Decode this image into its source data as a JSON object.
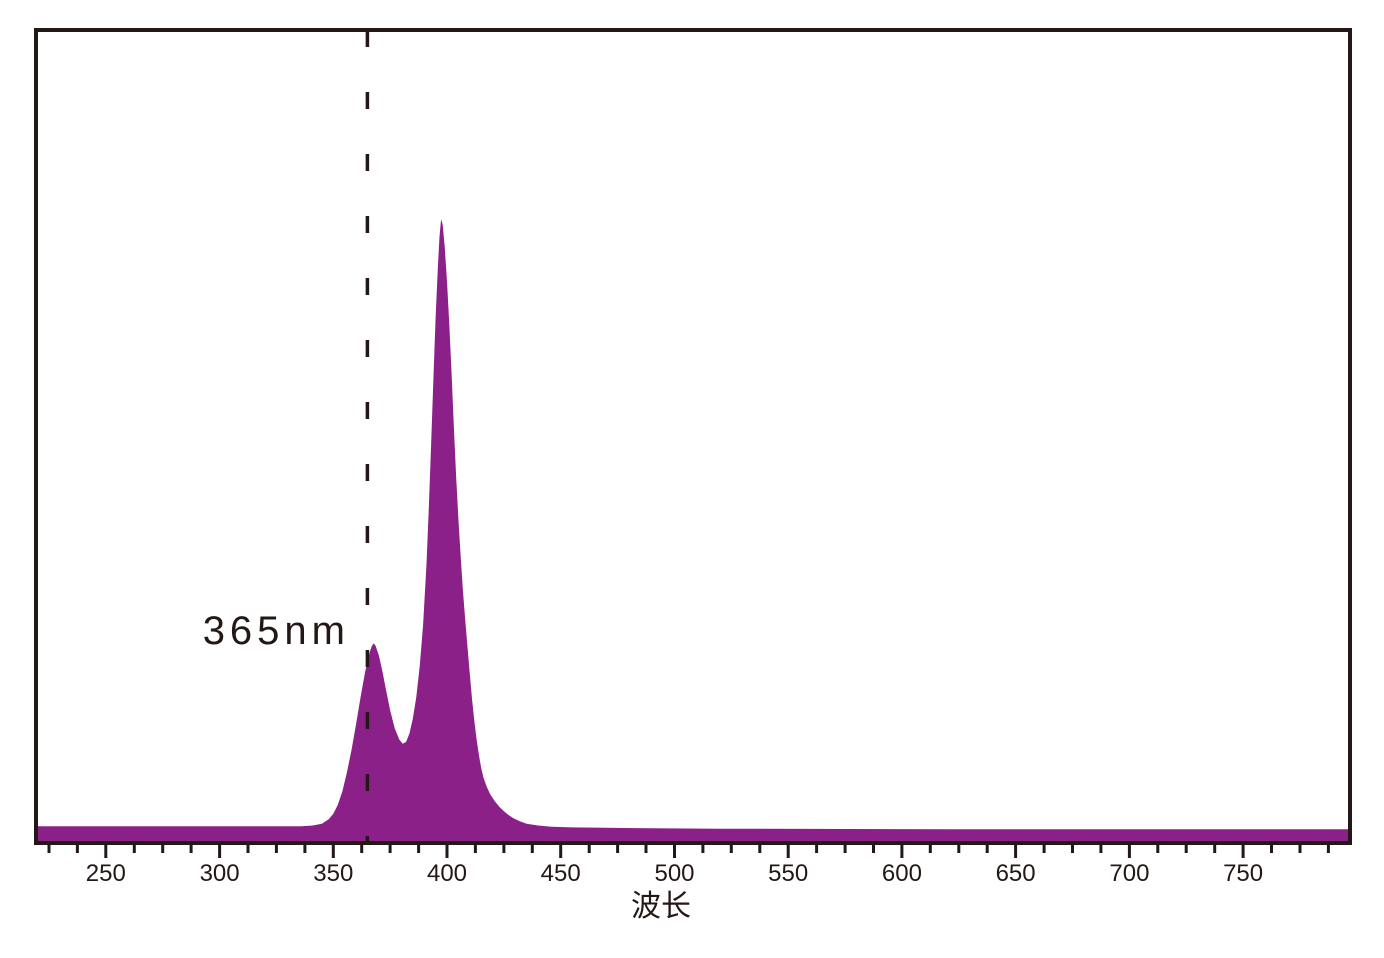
{
  "figure": {
    "background": "#FFFFFF"
  },
  "chart_data": {
    "type": "area",
    "title": "",
    "xlabel": "波长",
    "ylabel": "",
    "x_range": [
      219.3,
      797.0
    ],
    "ylim": [
      0,
      1.3
    ],
    "grid": false,
    "legend": "none",
    "x_major_ticks": [
      250,
      300,
      350,
      400,
      450,
      500,
      550,
      600,
      650,
      700,
      750
    ],
    "x_minor_ticks": {
      "start": 225,
      "end": 787.5,
      "step": 12.5
    },
    "annotation": {
      "text": "365nm",
      "x": 365,
      "style": "dashed-vertical-line"
    },
    "peaks": [
      {
        "wavelength": 367.8,
        "rel_intensity": 0.32
      },
      {
        "wavelength": 397.4,
        "rel_intensity": 1.0
      }
    ],
    "baseline_rel_intensity": 0.027,
    "colors": {
      "fill": "#8B2088",
      "axis": "#231815",
      "text": "#231815",
      "background": "#FFFFFF"
    },
    "series": [
      {
        "name": "",
        "color": "#8B2088",
        "points": [
          [
            219.3,
            0.027
          ],
          [
            235,
            0.027
          ],
          [
            250,
            0.027
          ],
          [
            265,
            0.027
          ],
          [
            280,
            0.027
          ],
          [
            295,
            0.027
          ],
          [
            310,
            0.027
          ],
          [
            325,
            0.027
          ],
          [
            336,
            0.027
          ],
          [
            341,
            0.028
          ],
          [
            345,
            0.031
          ],
          [
            348,
            0.038
          ],
          [
            350,
            0.047
          ],
          [
            352,
            0.061
          ],
          [
            354,
            0.083
          ],
          [
            356,
            0.113
          ],
          [
            358,
            0.149
          ],
          [
            360,
            0.19
          ],
          [
            362,
            0.234
          ],
          [
            364,
            0.274
          ],
          [
            365,
            0.291
          ],
          [
            366,
            0.306
          ],
          [
            367,
            0.316
          ],
          [
            367.8,
            0.32
          ],
          [
            368.6,
            0.316
          ],
          [
            370,
            0.301
          ],
          [
            371.5,
            0.277
          ],
          [
            373,
            0.249
          ],
          [
            375,
            0.213
          ],
          [
            377,
            0.184
          ],
          [
            379,
            0.166
          ],
          [
            380.5,
            0.159
          ],
          [
            382,
            0.162
          ],
          [
            383.5,
            0.176
          ],
          [
            385,
            0.2
          ],
          [
            386.5,
            0.234
          ],
          [
            388,
            0.283
          ],
          [
            389.5,
            0.35
          ],
          [
            391,
            0.447
          ],
          [
            392,
            0.537
          ],
          [
            393,
            0.638
          ],
          [
            394,
            0.744
          ],
          [
            395,
            0.842
          ],
          [
            396,
            0.924
          ],
          [
            396.7,
            0.972
          ],
          [
            397.4,
            1.0
          ],
          [
            398.1,
            0.991
          ],
          [
            399,
            0.956
          ],
          [
            400,
            0.9
          ],
          [
            401,
            0.831
          ],
          [
            402,
            0.752
          ],
          [
            403,
            0.669
          ],
          [
            404,
            0.589
          ],
          [
            405,
            0.519
          ],
          [
            406,
            0.459
          ],
          [
            407,
            0.405
          ],
          [
            408,
            0.358
          ],
          [
            409,
            0.314
          ],
          [
            410,
            0.271
          ],
          [
            411,
            0.231
          ],
          [
            412,
            0.196
          ],
          [
            413,
            0.166
          ],
          [
            414,
            0.141
          ],
          [
            415,
            0.121
          ],
          [
            416,
            0.105
          ],
          [
            417.5,
            0.09
          ],
          [
            419,
            0.078
          ],
          [
            421,
            0.067
          ],
          [
            423,
            0.058
          ],
          [
            425,
            0.051
          ],
          [
            427,
            0.045
          ],
          [
            429,
            0.04
          ],
          [
            432,
            0.035
          ],
          [
            435,
            0.031
          ],
          [
            440,
            0.028
          ],
          [
            446,
            0.026
          ],
          [
            455,
            0.025
          ],
          [
            470,
            0.0243
          ],
          [
            490,
            0.0235
          ],
          [
            520,
            0.023
          ],
          [
            560,
            0.0226
          ],
          [
            620,
            0.0222
          ],
          [
            700,
            0.022
          ],
          [
            797,
            0.022
          ]
        ]
      }
    ]
  }
}
